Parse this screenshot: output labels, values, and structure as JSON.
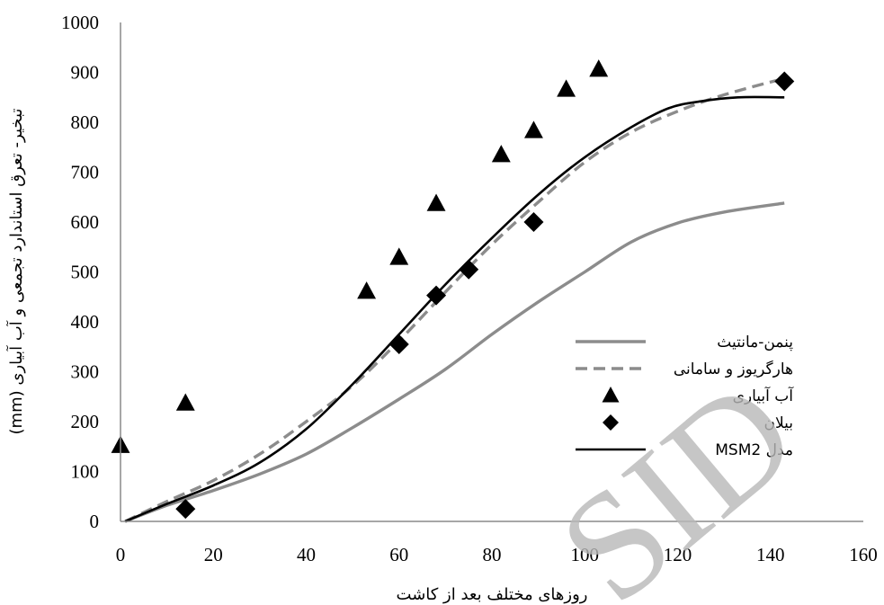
{
  "chart_data": {
    "type": "line",
    "xlabel": "روزهای مختلف بعد از کاشت",
    "ylabel": "تبخیر- تعرق استاندارد تجمعی و آب آبیاری (mm)",
    "xlim": [
      0,
      160
    ],
    "ylim": [
      0,
      1000
    ],
    "x_ticks": [
      "0",
      "20",
      "40",
      "60",
      "80",
      "100",
      "120",
      "140",
      "160"
    ],
    "y_ticks": [
      "0",
      "100",
      "200",
      "300",
      "400",
      "500",
      "600",
      "700",
      "800",
      "900",
      "1000"
    ],
    "grid": false,
    "legend_position": "right",
    "series": [
      {
        "name": "پنمن-مانتیث",
        "kind": "line",
        "color": "#8c8c8c",
        "dash": "solid",
        "points": [
          [
            1,
            0
          ],
          [
            10,
            32
          ],
          [
            20,
            62
          ],
          [
            30,
            95
          ],
          [
            40,
            135
          ],
          [
            50,
            188
          ],
          [
            60,
            245
          ],
          [
            70,
            305
          ],
          [
            80,
            375
          ],
          [
            90,
            440
          ],
          [
            100,
            500
          ],
          [
            110,
            560
          ],
          [
            120,
            598
          ],
          [
            130,
            620
          ],
          [
            143,
            638
          ]
        ]
      },
      {
        "name": "هارگریوز و سامانی",
        "kind": "line",
        "color": "#8c8c8c",
        "dash": "dashed",
        "points": [
          [
            1,
            0
          ],
          [
            10,
            40
          ],
          [
            20,
            82
          ],
          [
            30,
            135
          ],
          [
            40,
            200
          ],
          [
            50,
            272
          ],
          [
            60,
            362
          ],
          [
            70,
            460
          ],
          [
            80,
            555
          ],
          [
            90,
            640
          ],
          [
            100,
            720
          ],
          [
            110,
            780
          ],
          [
            120,
            822
          ],
          [
            130,
            855
          ],
          [
            143,
            888
          ]
        ]
      },
      {
        "name": "آب آبیاری",
        "kind": "triangle",
        "color": "#000000",
        "points": [
          [
            0,
            152
          ],
          [
            14,
            237
          ],
          [
            53,
            461
          ],
          [
            60,
            529
          ],
          [
            68,
            637
          ],
          [
            82,
            735
          ],
          [
            89,
            783
          ],
          [
            96,
            866
          ],
          [
            103,
            906
          ]
        ]
      },
      {
        "name": "بیلان",
        "kind": "diamond",
        "color": "#000000",
        "points": [
          [
            14,
            25
          ],
          [
            60,
            355
          ],
          [
            68,
            453
          ],
          [
            75,
            505
          ],
          [
            89,
            600
          ],
          [
            143,
            882
          ]
        ]
      },
      {
        "name": "مدل MSM2",
        "kind": "line",
        "color": "#000000",
        "dash": "solid",
        "points": [
          [
            1,
            0
          ],
          [
            10,
            35
          ],
          [
            20,
            72
          ],
          [
            30,
            118
          ],
          [
            40,
            185
          ],
          [
            50,
            275
          ],
          [
            60,
            375
          ],
          [
            70,
            475
          ],
          [
            80,
            568
          ],
          [
            90,
            655
          ],
          [
            100,
            730
          ],
          [
            110,
            790
          ],
          [
            118,
            828
          ],
          [
            125,
            842
          ],
          [
            133,
            850
          ],
          [
            143,
            850
          ]
        ]
      }
    ]
  },
  "watermark": "SID"
}
